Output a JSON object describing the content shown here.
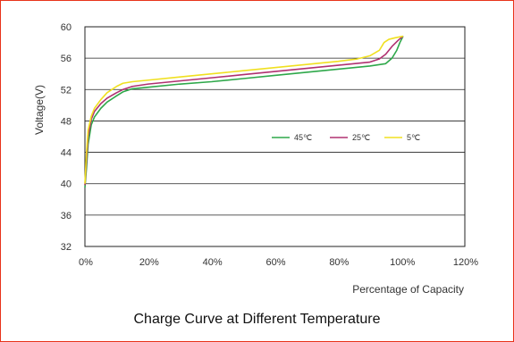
{
  "chart_data": {
    "type": "line",
    "title": "Charge Curve at Different Temperature",
    "xlabel": "Percentage of Capacity",
    "ylabel": "Voltage(V)",
    "xlim": [
      0,
      120
    ],
    "ylim": [
      32,
      60
    ],
    "x_ticks": [
      0,
      20,
      40,
      60,
      80,
      100,
      120
    ],
    "x_tick_labels": [
      "0%",
      "20%",
      "40%",
      "60%",
      "80%",
      "100%",
      "120%"
    ],
    "y_ticks": [
      32,
      36,
      40,
      44,
      48,
      52,
      56,
      60
    ],
    "y_tick_labels": [
      "32",
      "36",
      "40",
      "44",
      "48",
      "52",
      "56",
      "60"
    ],
    "grid": "horizontal",
    "legend_position": "right-middle",
    "series": [
      {
        "name": "45℃",
        "color": "#2ea84a",
        "x": [
          0,
          0.5,
          1,
          2,
          3,
          5,
          7,
          10,
          12,
          15,
          20,
          30,
          40,
          50,
          60,
          70,
          80,
          90,
          95,
          97,
          98.5,
          99.5,
          100.5
        ],
        "y": [
          39.5,
          42,
          45,
          47.5,
          48.5,
          49.6,
          50.4,
          51.2,
          51.7,
          52.1,
          52.3,
          52.7,
          53.0,
          53.4,
          53.8,
          54.2,
          54.6,
          55.0,
          55.3,
          56.0,
          57.0,
          58.0,
          58.8
        ]
      },
      {
        "name": "25℃",
        "color": "#b03070",
        "x": [
          0,
          0.5,
          1,
          2,
          3,
          5,
          7,
          10,
          12,
          15,
          20,
          30,
          40,
          50,
          60,
          70,
          80,
          90,
          93,
          95,
          97,
          99,
          100.5
        ],
        "y": [
          39.8,
          43,
          46,
          48.2,
          49.2,
          50.2,
          50.9,
          51.6,
          52.0,
          52.4,
          52.7,
          53.1,
          53.5,
          53.9,
          54.3,
          54.7,
          55.1,
          55.5,
          55.9,
          56.5,
          57.5,
          58.3,
          58.8
        ]
      },
      {
        "name": "5℃",
        "color": "#f0e020",
        "x": [
          0,
          0.5,
          1,
          2,
          3,
          5,
          7,
          10,
          12,
          15,
          20,
          30,
          40,
          50,
          60,
          70,
          80,
          86,
          90,
          93,
          94.5,
          96,
          98,
          100.5
        ],
        "y": [
          40,
          44,
          46.8,
          48.6,
          49.6,
          50.7,
          51.6,
          52.4,
          52.8,
          53.0,
          53.2,
          53.6,
          54.0,
          54.4,
          54.8,
          55.2,
          55.6,
          55.9,
          56.3,
          57.0,
          58.0,
          58.4,
          58.6,
          58.8
        ]
      }
    ]
  }
}
